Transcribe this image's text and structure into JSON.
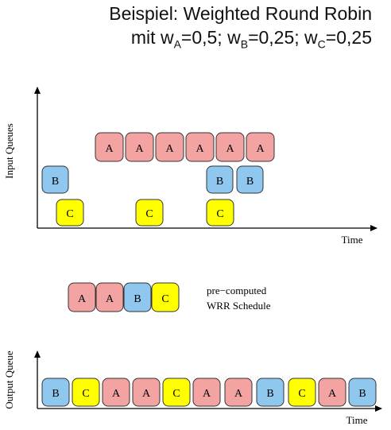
{
  "title": {
    "line1": "Beispiel: Weighted Round Robin",
    "line2": {
      "prefix": "mit ",
      "wA": "w",
      "subA": "A",
      "valA": "=0,5; ",
      "wB": "w",
      "subB": "B",
      "valB": "=0,25; ",
      "wC": "w",
      "subC": "C",
      "valC": "=0,25"
    }
  },
  "colors": {
    "A": "#f4a3a3",
    "B": "#8fc7ef",
    "C": "#ffff00",
    "stroke": "#333333",
    "axis": "#000000"
  },
  "input_chart": {
    "ylabel": "Input Queues",
    "xlabel": "Time",
    "rows": {
      "A": [
        "A",
        "A",
        "A",
        "A",
        "A",
        "A"
      ],
      "B": [
        "B",
        "B",
        "B"
      ],
      "C": [
        "C",
        "C",
        "C"
      ]
    }
  },
  "schedule": {
    "label_line1": "pre−computed",
    "label_line2": "WRR Schedule",
    "sequence": [
      "A",
      "A",
      "B",
      "C"
    ]
  },
  "output_chart": {
    "ylabel": "Output Queue",
    "xlabel": "Time",
    "sequence": [
      "B",
      "C",
      "A",
      "A",
      "C",
      "A",
      "A",
      "B",
      "C",
      "A",
      "B"
    ]
  }
}
